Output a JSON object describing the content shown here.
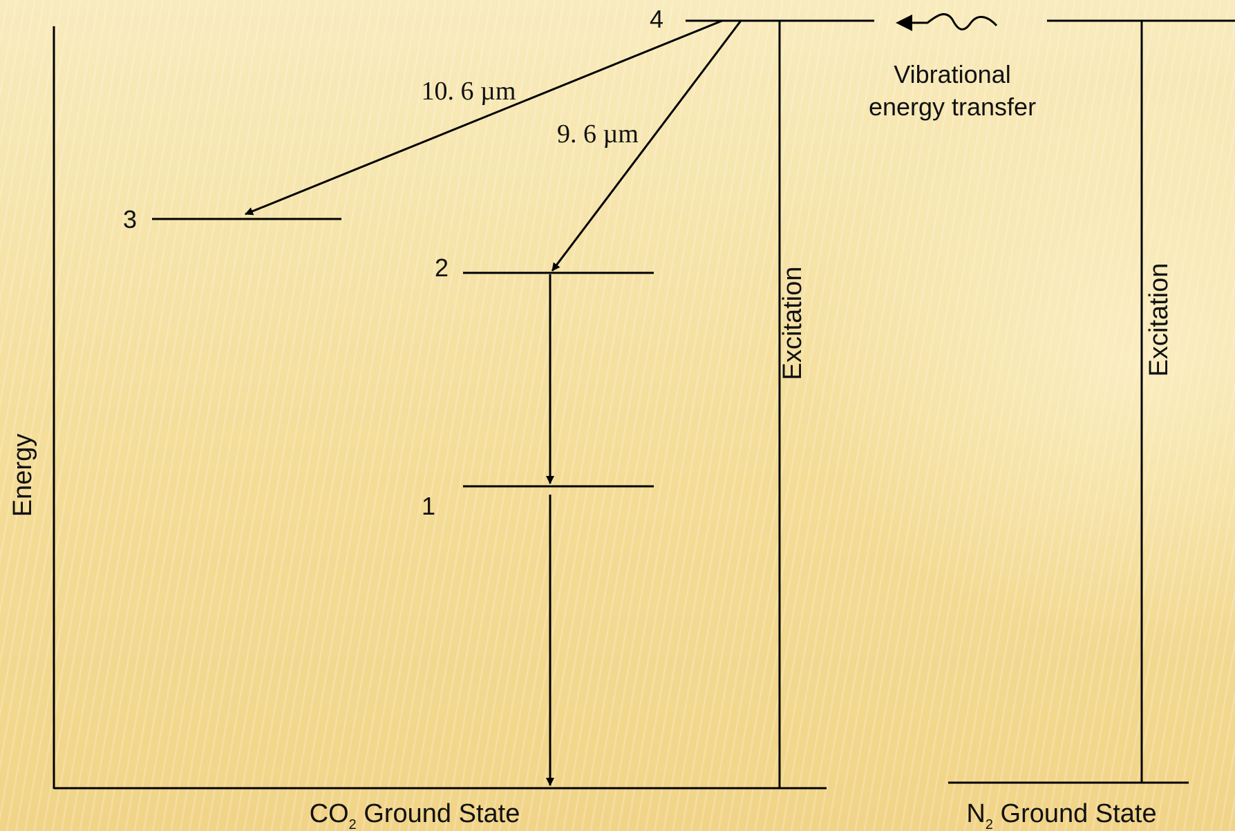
{
  "diagram": {
    "y_axis_label": "Energy",
    "levels": {
      "level_1": "1",
      "level_2": "2",
      "level_3": "3",
      "level_4": "4"
    },
    "transitions": {
      "wavelength_10_6": "10. 6 µm",
      "wavelength_9_6": "9. 6 µm"
    },
    "transfer": {
      "line1": "Vibrational",
      "line2": "energy transfer"
    },
    "excitation_co2": "Excitation",
    "excitation_n2": "Excitation",
    "co2_ground": {
      "prefix": "CO",
      "subscript": "2",
      "suffix": " Ground State"
    },
    "n2_ground": {
      "prefix": "N",
      "subscript": "2",
      "suffix": " Ground State"
    }
  }
}
